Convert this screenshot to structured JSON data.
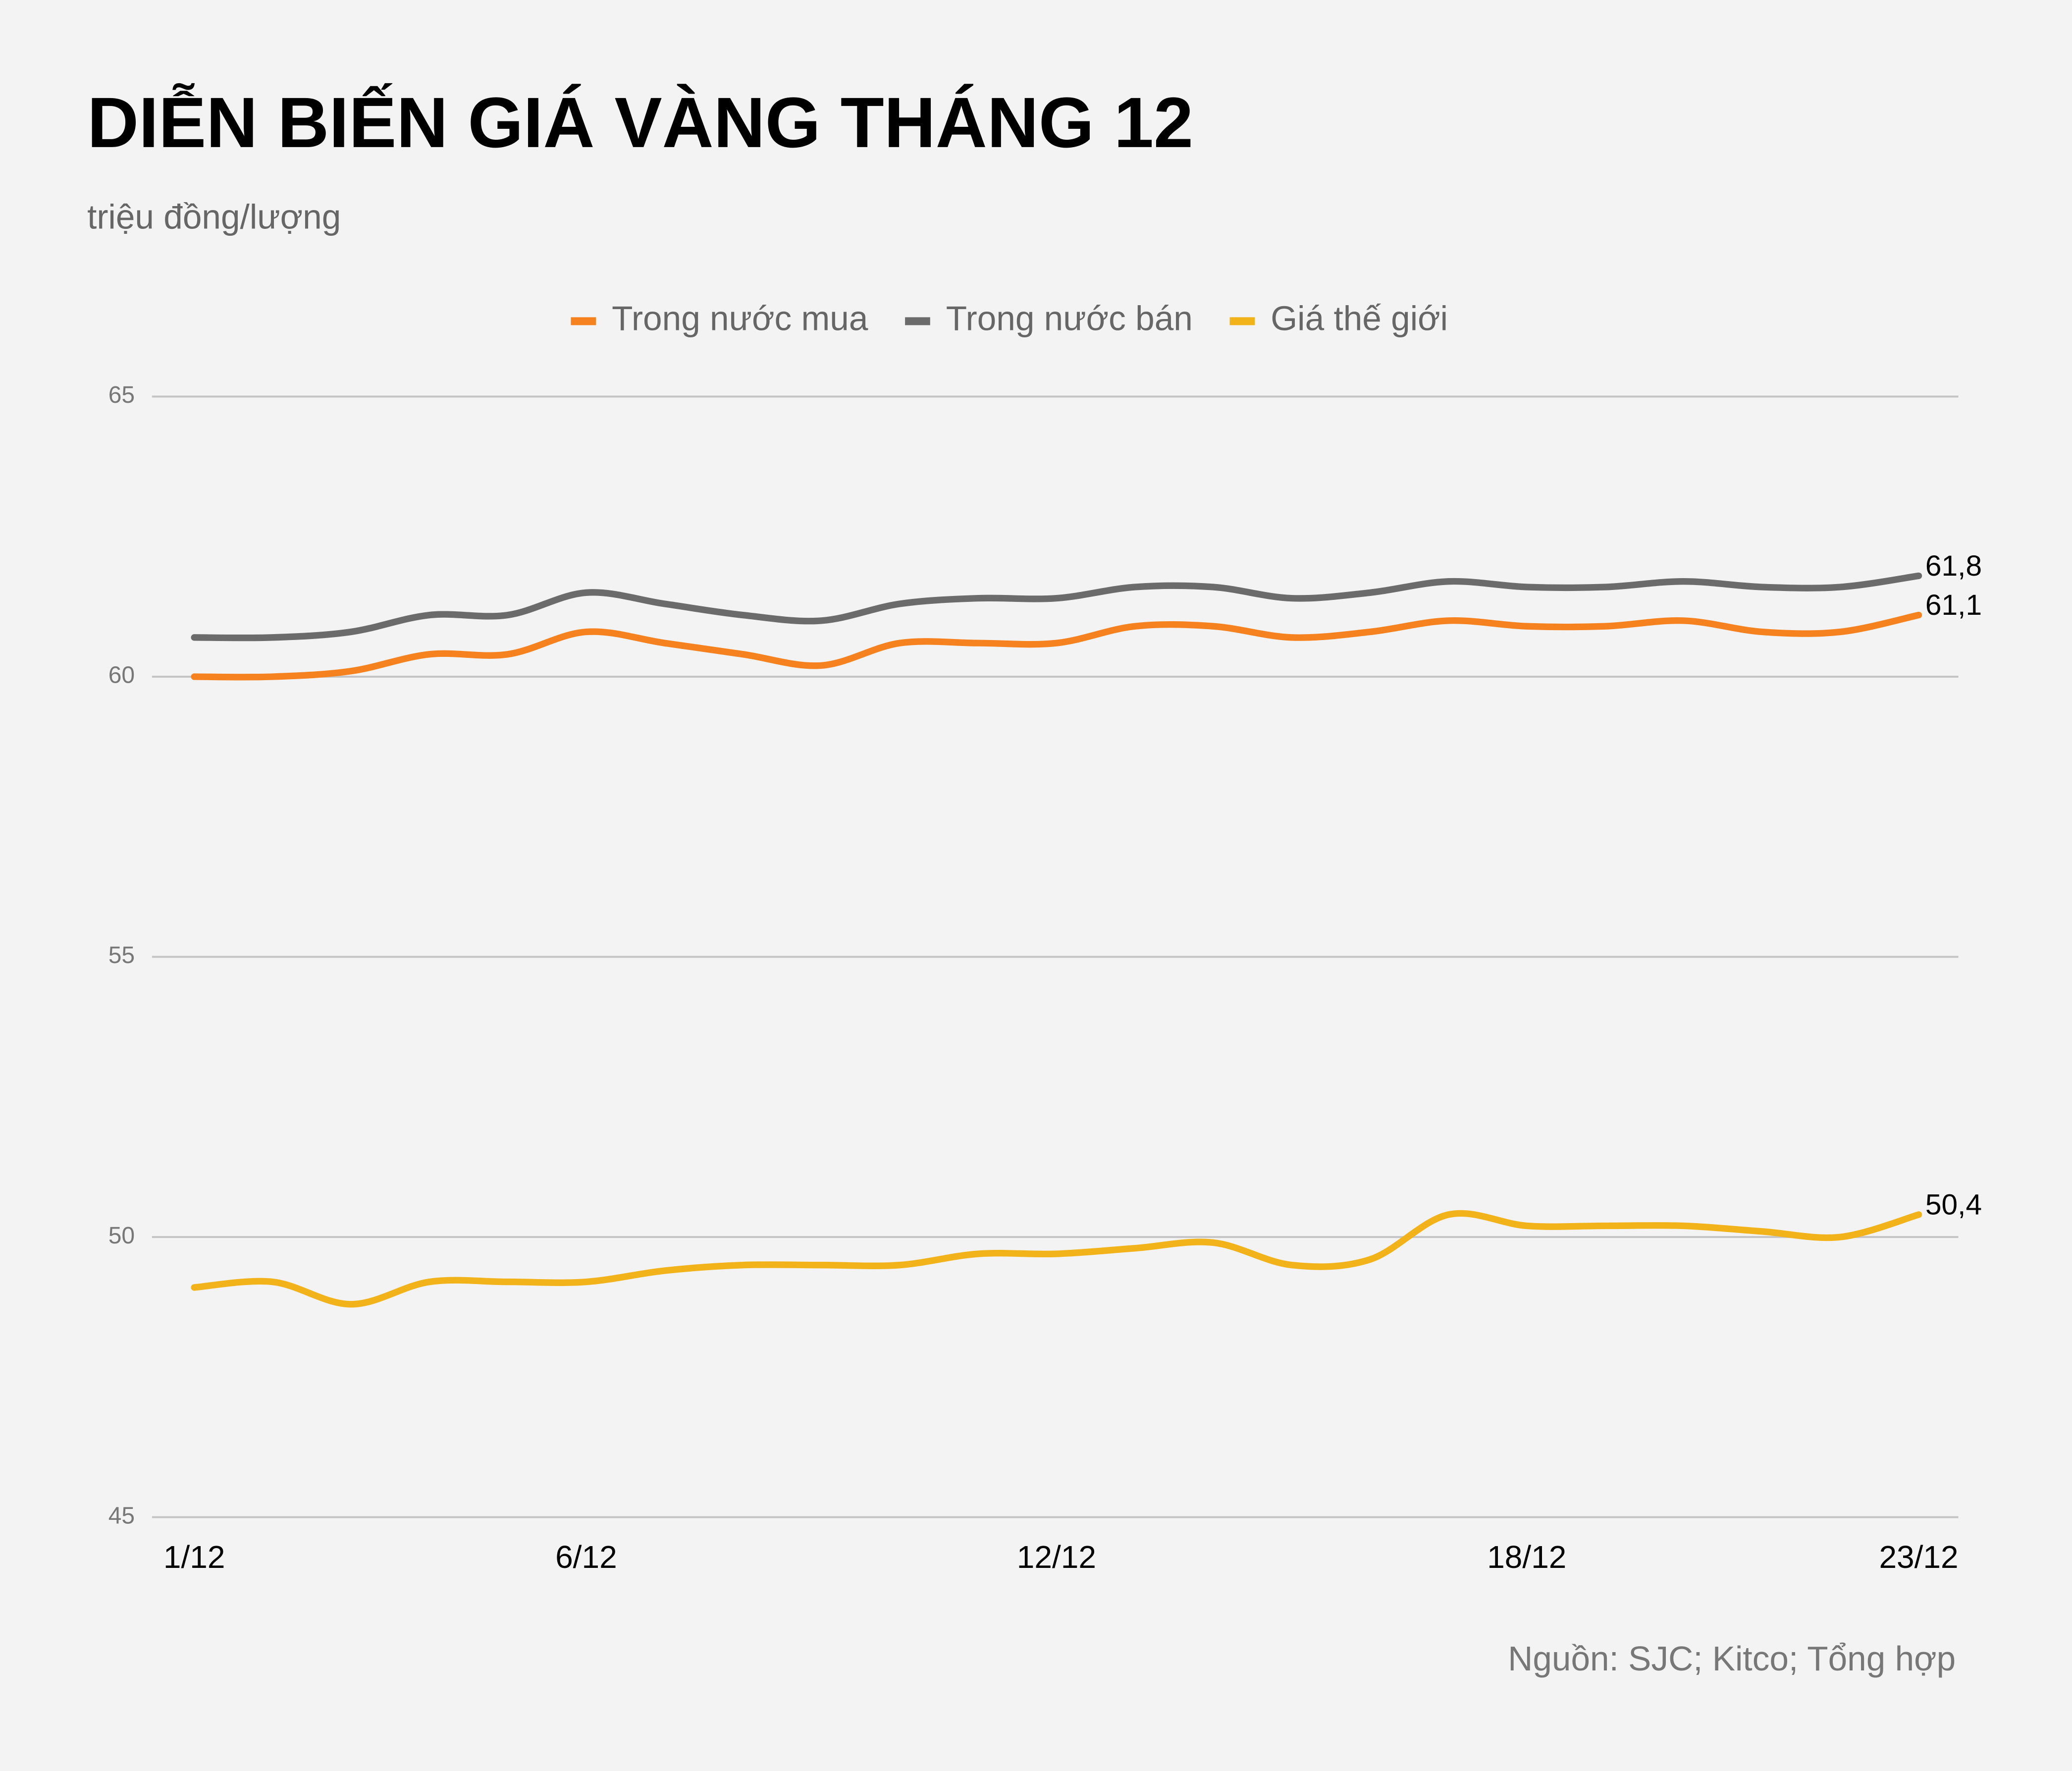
{
  "chart_data": {
    "type": "line",
    "title": "DIỄN BIẾN GIÁ VÀNG THÁNG 12",
    "subtitle": "triệu đồng/lượng",
    "source": "Nguồn: SJC; Kitco; Tổng hợp",
    "categories": [
      "1/12",
      null,
      null,
      null,
      null,
      "6/12",
      null,
      null,
      null,
      null,
      null,
      "12/12",
      null,
      null,
      null,
      null,
      null,
      "18/12",
      null,
      null,
      null,
      null,
      "23/12"
    ],
    "series": [
      {
        "name": "Trong nước mua",
        "color": "#f5821f",
        "values": [
          60.0,
          60.0,
          60.1,
          60.4,
          60.4,
          60.8,
          60.6,
          60.4,
          60.2,
          60.6,
          60.6,
          60.6,
          60.9,
          60.9,
          60.7,
          60.8,
          61.0,
          60.9,
          60.9,
          61.0,
          60.8,
          60.8,
          61.1
        ],
        "value_labels": [
          null,
          null,
          null,
          null,
          null,
          null,
          null,
          null,
          null,
          null,
          null,
          null,
          null,
          null,
          null,
          null,
          null,
          null,
          null,
          null,
          null,
          null,
          "61,1"
        ]
      },
      {
        "name": "Trong nước bán",
        "color": "#6b6b6b",
        "values": [
          60.7,
          60.7,
          60.8,
          61.1,
          61.1,
          61.5,
          61.3,
          61.1,
          61.0,
          61.3,
          61.4,
          61.4,
          61.6,
          61.6,
          61.4,
          61.5,
          61.7,
          61.6,
          61.6,
          61.7,
          61.6,
          61.6,
          61.8
        ],
        "value_labels": [
          null,
          null,
          null,
          null,
          null,
          null,
          null,
          null,
          null,
          null,
          null,
          null,
          null,
          null,
          null,
          null,
          null,
          null,
          null,
          null,
          null,
          null,
          "61,8"
        ]
      },
      {
        "name": "Giá thế giới",
        "color": "#f2b21a",
        "values": [
          49.1,
          49.2,
          48.8,
          49.2,
          49.2,
          49.2,
          49.4,
          49.5,
          49.5,
          49.5,
          49.7,
          49.7,
          49.8,
          49.9,
          49.5,
          49.6,
          50.4,
          50.2,
          50.2,
          50.2,
          50.1,
          50.0,
          50.4
        ],
        "value_labels": [
          null,
          null,
          null,
          null,
          null,
          null,
          null,
          null,
          null,
          null,
          null,
          null,
          null,
          null,
          null,
          null,
          null,
          null,
          null,
          null,
          null,
          null,
          "50,4"
        ]
      }
    ],
    "ylim": [
      45,
      65
    ],
    "yticks": [
      45,
      50,
      55,
      60,
      65
    ],
    "grid": true,
    "legend": "top"
  }
}
